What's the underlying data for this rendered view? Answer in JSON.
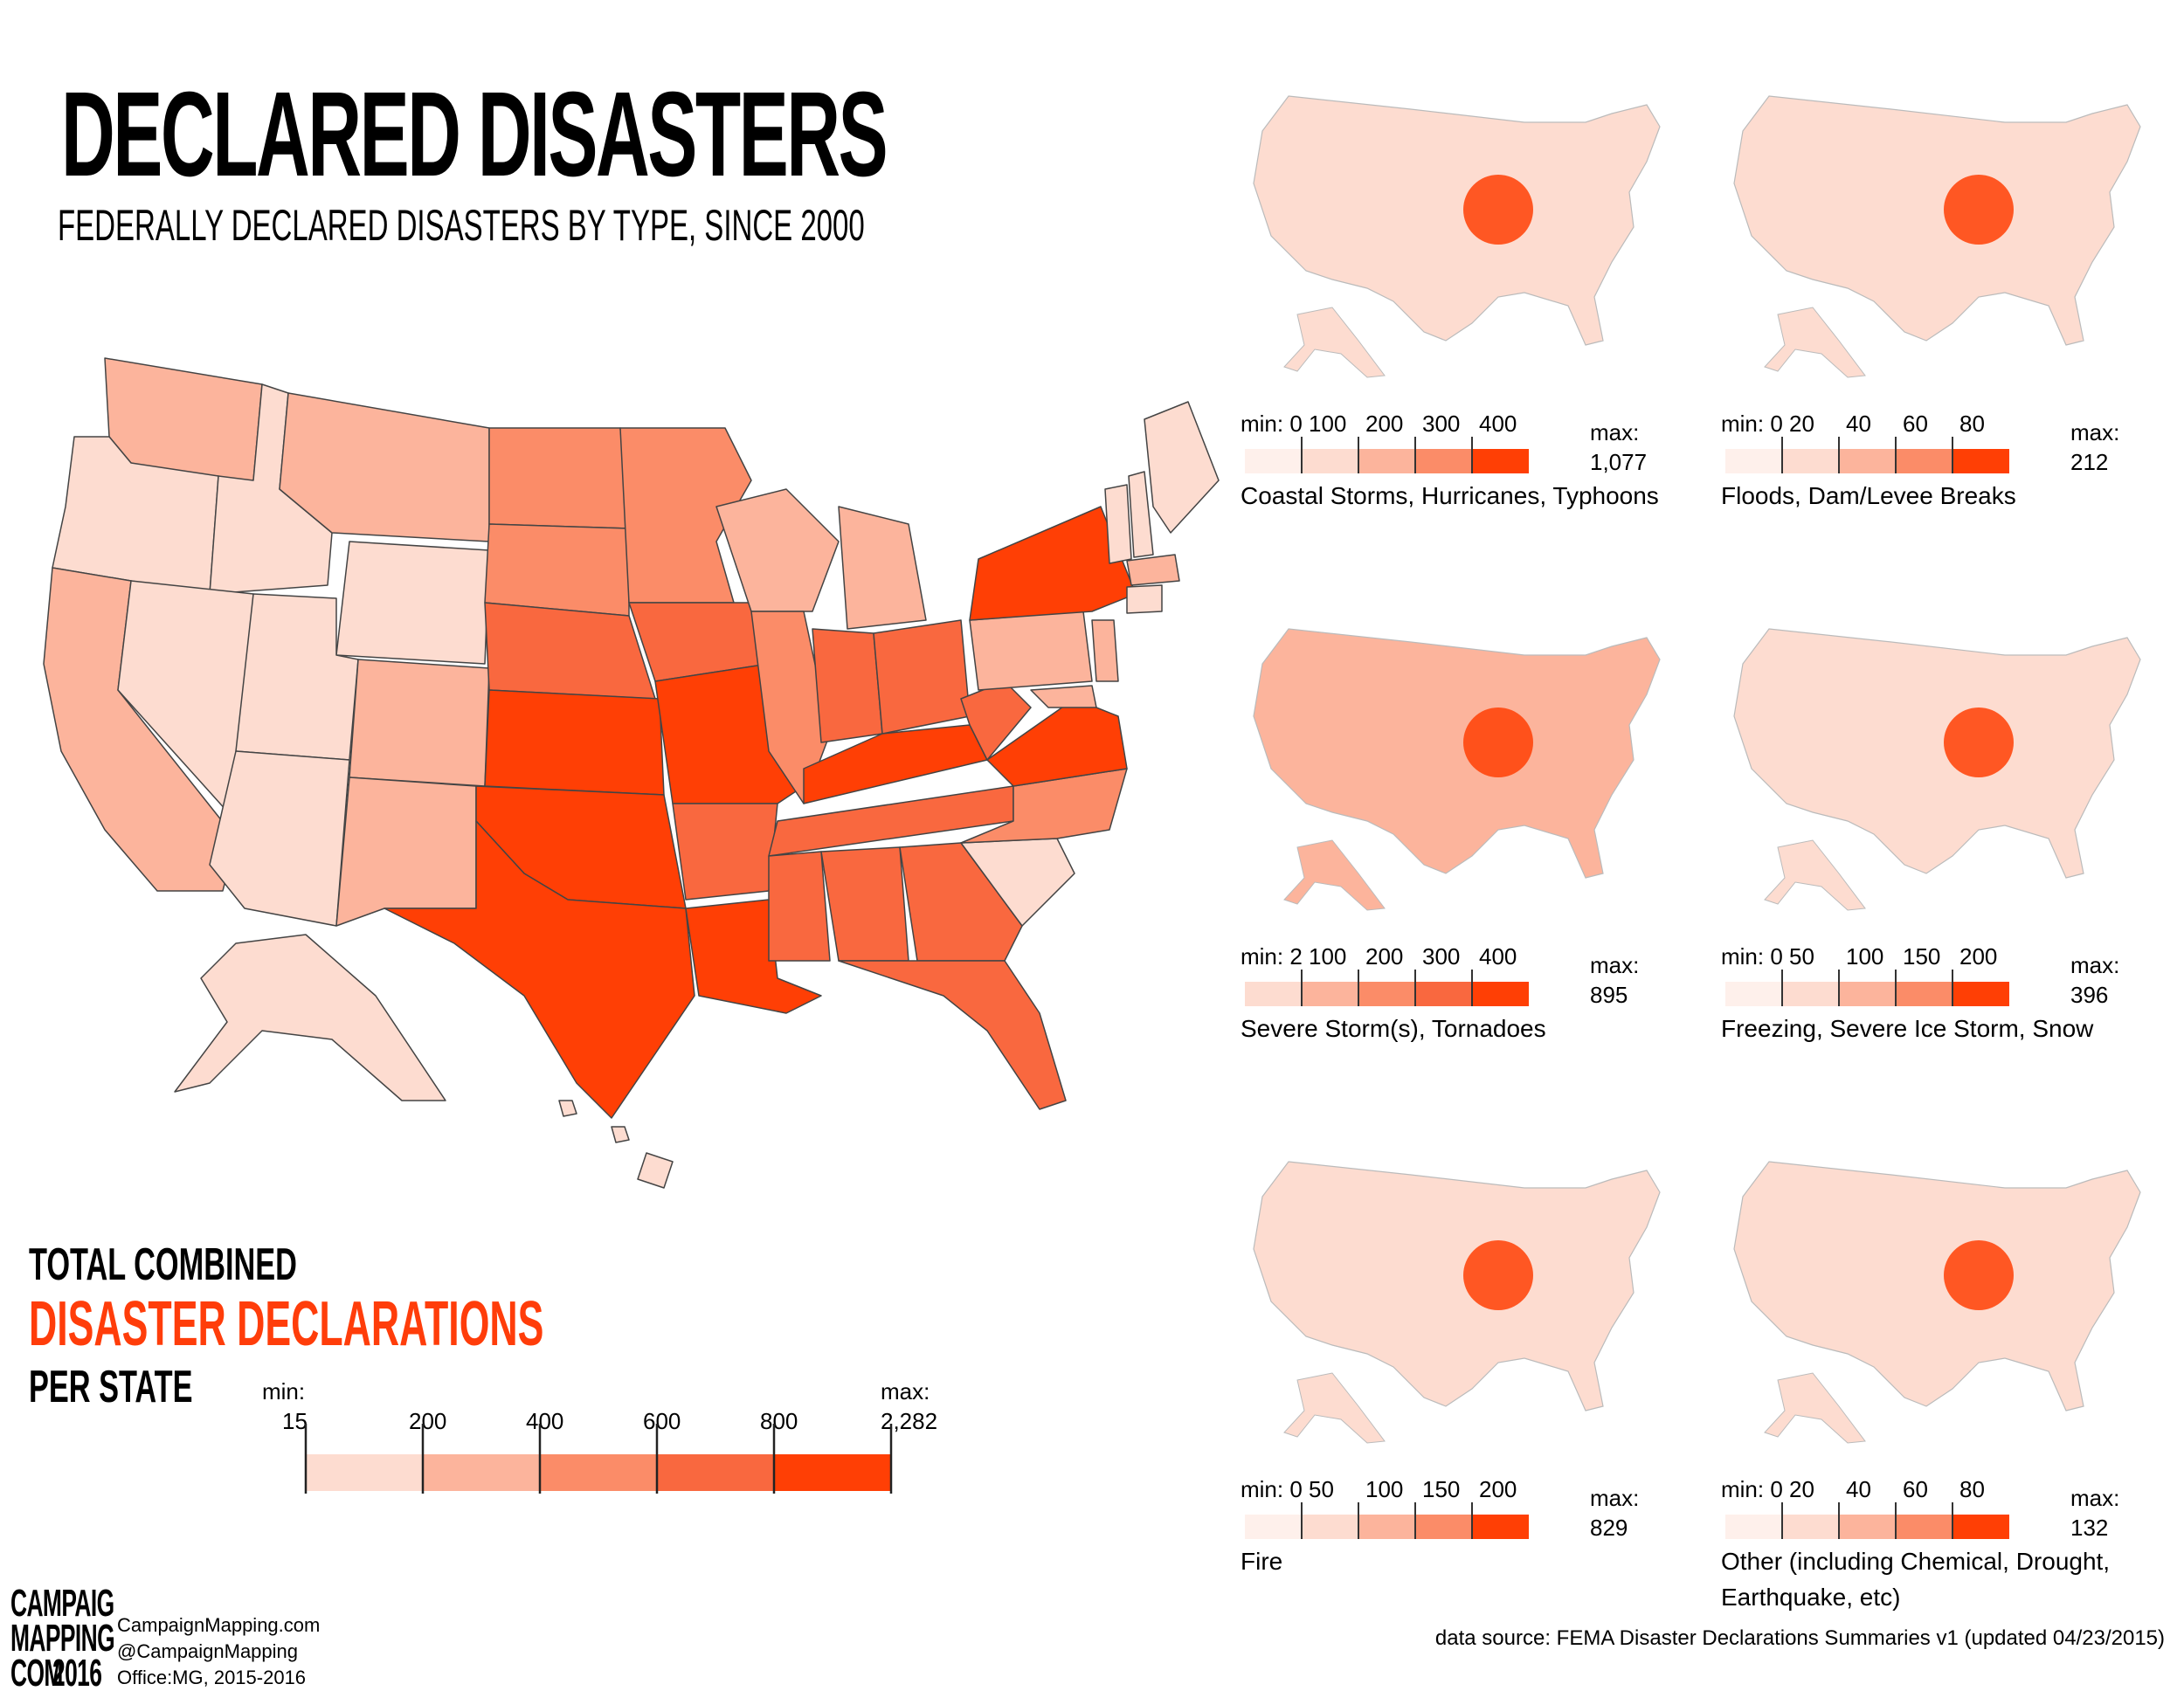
{
  "header": {
    "title": "DECLARED DISASTERS",
    "subtitle": "FEDERALLY DECLARED DISASTERS BY TYPE, SINCE 2000"
  },
  "total_legend": {
    "line1": "TOTAL COMBINED",
    "line2": "DISASTER DECLARATIONS",
    "line3": "PER STATE",
    "min_label": "min:",
    "min_value": "15",
    "max_label": "max:",
    "max_value": "2,282",
    "ticks": [
      "200",
      "400",
      "600",
      "800"
    ],
    "colors": [
      "#fddcd0",
      "#fcb49c",
      "#fb8c68",
      "#f9683f",
      "#ff3f05"
    ]
  },
  "small_maps": [
    {
      "title": "Coastal Storms, Hurricanes, Typhoons",
      "min_value": "0",
      "ticks": [
        "100",
        "200",
        "300",
        "400"
      ],
      "max_value": "1,077",
      "colors": [
        "#fef0eb",
        "#fddcd0",
        "#fcb49c",
        "#fb8c68",
        "#ff3f05"
      ]
    },
    {
      "title": "Floods, Dam/Levee Breaks",
      "min_value": "0",
      "ticks": [
        "20",
        "40",
        "60",
        "80"
      ],
      "max_value": "212",
      "colors": [
        "#fef0eb",
        "#fddcd0",
        "#fcb49c",
        "#fb8c68",
        "#ff3f05"
      ]
    },
    {
      "title": "Severe Storm(s), Tornadoes",
      "min_value": "2",
      "ticks": [
        "100",
        "200",
        "300",
        "400"
      ],
      "max_value": "895",
      "colors": [
        "#fddcd0",
        "#fcb49c",
        "#fb8c68",
        "#f9683f",
        "#ff3f05"
      ]
    },
    {
      "title": "Freezing, Severe Ice Storm, Snow",
      "min_value": "0",
      "ticks": [
        "50",
        "100",
        "150",
        "200"
      ],
      "max_value": "396",
      "colors": [
        "#fef0eb",
        "#fddcd0",
        "#fcb49c",
        "#fb8c68",
        "#ff3f05"
      ]
    },
    {
      "title": "Fire",
      "min_value": "0",
      "ticks": [
        "50",
        "100",
        "150",
        "200"
      ],
      "max_value": "829",
      "colors": [
        "#fef0eb",
        "#fddcd0",
        "#fcb49c",
        "#fb8c68",
        "#ff3f05"
      ]
    },
    {
      "title": "Other (including Chemical, Drought, Earthquake, etc)",
      "min_value": "0",
      "ticks": [
        "20",
        "40",
        "60",
        "80"
      ],
      "max_value": "132",
      "colors": [
        "#fef0eb",
        "#fddcd0",
        "#fcb49c",
        "#fb8c68",
        "#ff3f05"
      ]
    }
  ],
  "legend_labels": {
    "min": "min:",
    "max": "max:"
  },
  "footer": {
    "logo_lines": [
      "CAMPAIGN",
      "MAPPING",
      "COM",
      "2016"
    ],
    "credit_site": "CampaignMapping.com",
    "credit_handle": "@CampaignMapping",
    "credit_office": "Office:MG, 2015-2016",
    "source": "data source: FEMA Disaster Declarations Summaries v1 (updated 04/23/2015)"
  }
}
